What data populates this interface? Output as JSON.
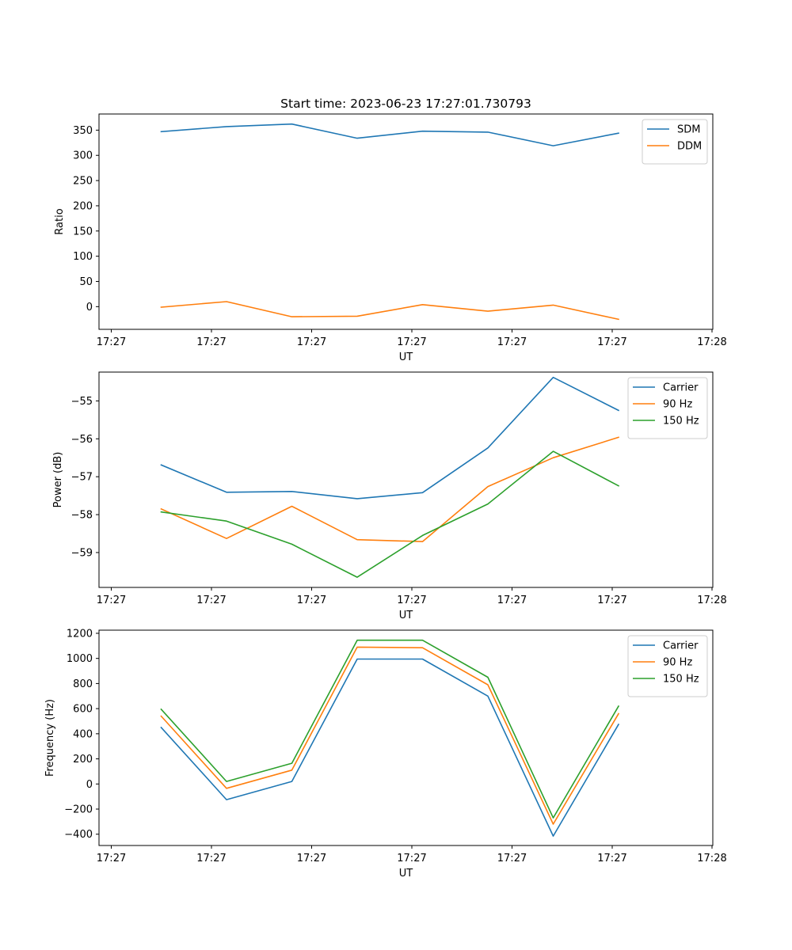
{
  "figure_title": "Start time: 2023-06-23 17:27:01.730793",
  "chart_data": [
    {
      "type": "line",
      "title": "Start time: 2023-06-23 17:27:01.730793",
      "xlabel": "UT",
      "ylabel": "Ratio",
      "x_tick_labels": [
        "17:27",
        "17:27",
        "17:27",
        "17:27",
        "17:27",
        "17:27",
        "17:28"
      ],
      "y_ticks": [
        0,
        50,
        100,
        150,
        200,
        250,
        300,
        350
      ],
      "ylim": [
        -45,
        382
      ],
      "legend_position": "upper right",
      "series": [
        {
          "name": "SDM",
          "color": "#1f77b4",
          "values": [
            347,
            357,
            362,
            334,
            348,
            346,
            319,
            344
          ]
        },
        {
          "name": "DDM",
          "color": "#ff7f0e",
          "values": [
            -1,
            10,
            -20,
            -19,
            4,
            -9,
            3,
            -25
          ]
        }
      ]
    },
    {
      "type": "line",
      "xlabel": "UT",
      "ylabel": "Power (dB)",
      "x_tick_labels": [
        "17:27",
        "17:27",
        "17:27",
        "17:27",
        "17:27",
        "17:27",
        "17:28"
      ],
      "y_ticks": [
        -59,
        -58,
        -57,
        -56,
        -55
      ],
      "ylim": [
        -59.92,
        -54.24
      ],
      "legend_position": "upper right",
      "series": [
        {
          "name": "Carrier",
          "color": "#1f77b4",
          "values": [
            -56.69,
            -57.41,
            -57.39,
            -57.58,
            -57.42,
            -56.24,
            -54.38,
            -55.25
          ]
        },
        {
          "name": "90 Hz",
          "color": "#ff7f0e",
          "values": [
            -57.85,
            -58.63,
            -57.78,
            -58.66,
            -58.71,
            -57.26,
            -56.5,
            -55.96
          ]
        },
        {
          "name": "150 Hz",
          "color": "#2ca02c",
          "values": [
            -57.93,
            -58.17,
            -58.78,
            -59.65,
            -58.55,
            -57.72,
            -56.33,
            -57.24
          ]
        }
      ]
    },
    {
      "type": "line",
      "xlabel": "UT",
      "ylabel": "Frequency (Hz)",
      "x_tick_labels": [
        "17:27",
        "17:27",
        "17:27",
        "17:27",
        "17:27",
        "17:27",
        "17:28"
      ],
      "y_ticks": [
        -400,
        -200,
        0,
        200,
        400,
        600,
        800,
        1000,
        1200
      ],
      "ylim": [
        -490,
        1225
      ],
      "legend_position": "upper right",
      "series": [
        {
          "name": "Carrier",
          "color": "#1f77b4",
          "values": [
            450,
            -125,
            20,
            995,
            995,
            700,
            -415,
            475
          ]
        },
        {
          "name": "90 Hz",
          "color": "#ff7f0e",
          "values": [
            540,
            -35,
            110,
            1090,
            1085,
            790,
            -320,
            560
          ]
        },
        {
          "name": "150 Hz",
          "color": "#2ca02c",
          "values": [
            595,
            20,
            165,
            1145,
            1145,
            850,
            -270,
            620
          ]
        }
      ]
    }
  ]
}
